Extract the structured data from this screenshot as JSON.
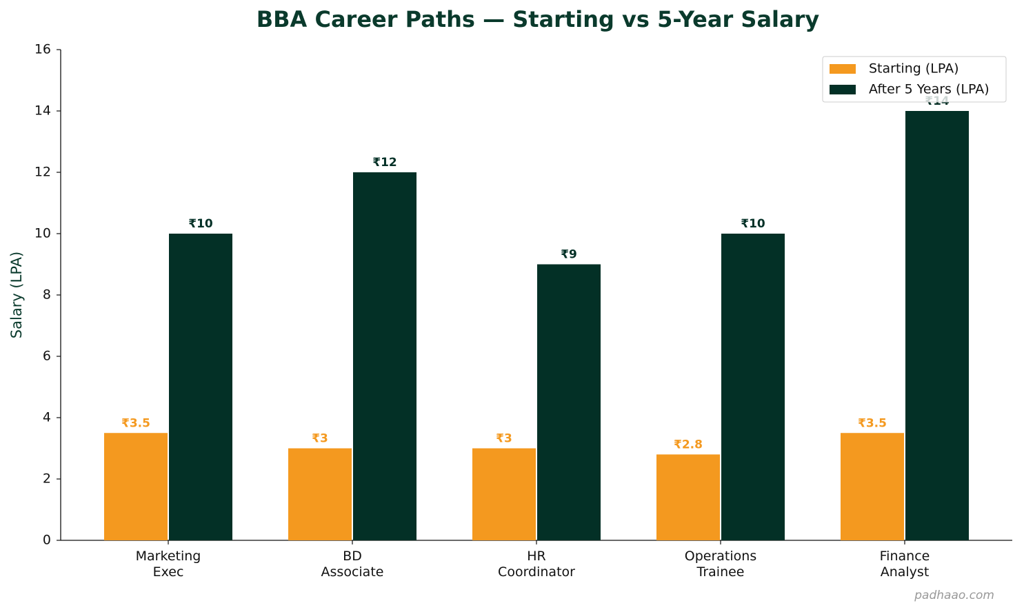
{
  "chart_data": {
    "type": "bar",
    "title": "BBA Career Paths — Starting vs 5-Year Salary",
    "y_label": "Salary (LPA)",
    "categories": [
      "Marketing\nExec",
      "BD\nAssociate",
      "HR\nCoordinator",
      "Operations\nTrainee",
      "Finance\nAnalyst"
    ],
    "series": [
      {
        "name": "Starting (LPA)",
        "color": "#f4991f",
        "values": [
          3.5,
          3,
          3,
          2.8,
          3.5
        ],
        "value_labels": [
          "₹3.5",
          "₹3",
          "₹3",
          "₹2.8",
          "₹3.5"
        ]
      },
      {
        "name": "After 5 Years (LPA)",
        "color": "#033026",
        "values": [
          10,
          12,
          9,
          10,
          14
        ],
        "value_labels": [
          "₹10",
          "₹12",
          "₹9",
          "₹10",
          "₹14"
        ]
      }
    ],
    "ylim": [
      0,
      16
    ],
    "yticks": [
      0,
      2,
      4,
      6,
      8,
      10,
      12,
      14,
      16
    ],
    "grid": false,
    "legend": "upper right",
    "watermark": "padhaao.com"
  }
}
